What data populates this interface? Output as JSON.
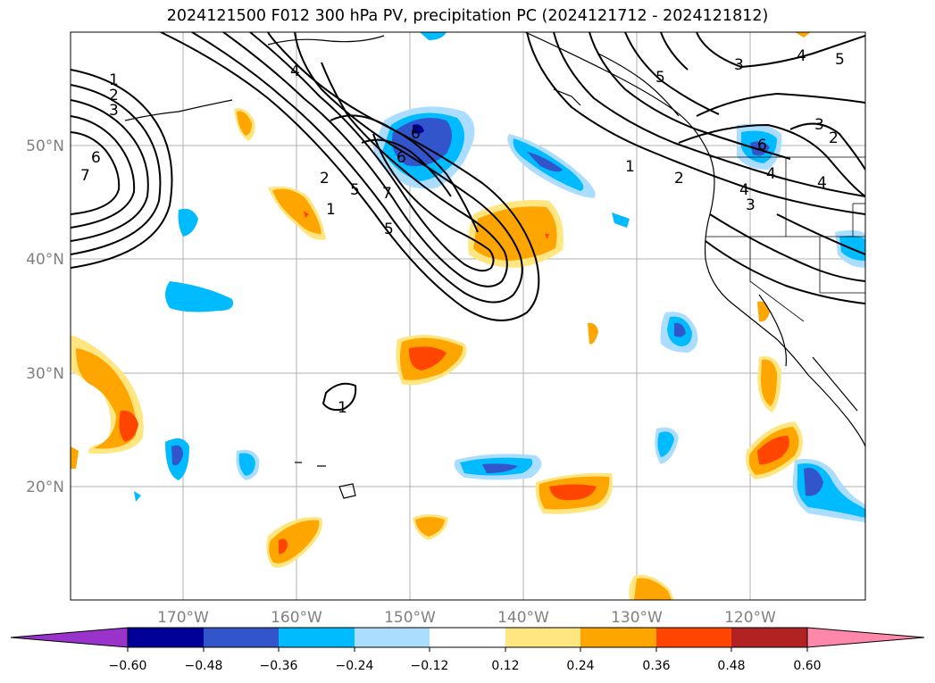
{
  "title": "2024121500 F012 300 hPa PV, precipitation PC (2024121712 - 2024121812)",
  "lat_labels": [
    "50°N",
    "40°N",
    "30°N",
    "20°N"
  ],
  "lon_labels": [
    "170°W",
    "160°W",
    "150°W",
    "140°W",
    "130°W",
    "120°W"
  ],
  "colorbar": {
    "ticks": [
      "−0.60",
      "−0.48",
      "−0.36",
      "−0.24",
      "−0.12",
      "0.12",
      "0.24",
      "0.36",
      "0.48",
      "0.60"
    ],
    "colors": [
      "#9933cc",
      "#000099",
      "#3355cc",
      "#00bbff",
      "#aaddff",
      "#ffffff",
      "#ffe680",
      "#ffa500",
      "#ff4500",
      "#b22222",
      "#ff88aa"
    ]
  },
  "contour_labels": [
    "1",
    "2",
    "3",
    "6",
    "7",
    "4",
    "2",
    "1",
    "7",
    "5",
    "6",
    "6",
    "5",
    "4",
    "1",
    "2",
    "3",
    "4",
    "5",
    "3",
    "4",
    "5",
    "6",
    "3",
    "2",
    "4",
    "1"
  ]
}
